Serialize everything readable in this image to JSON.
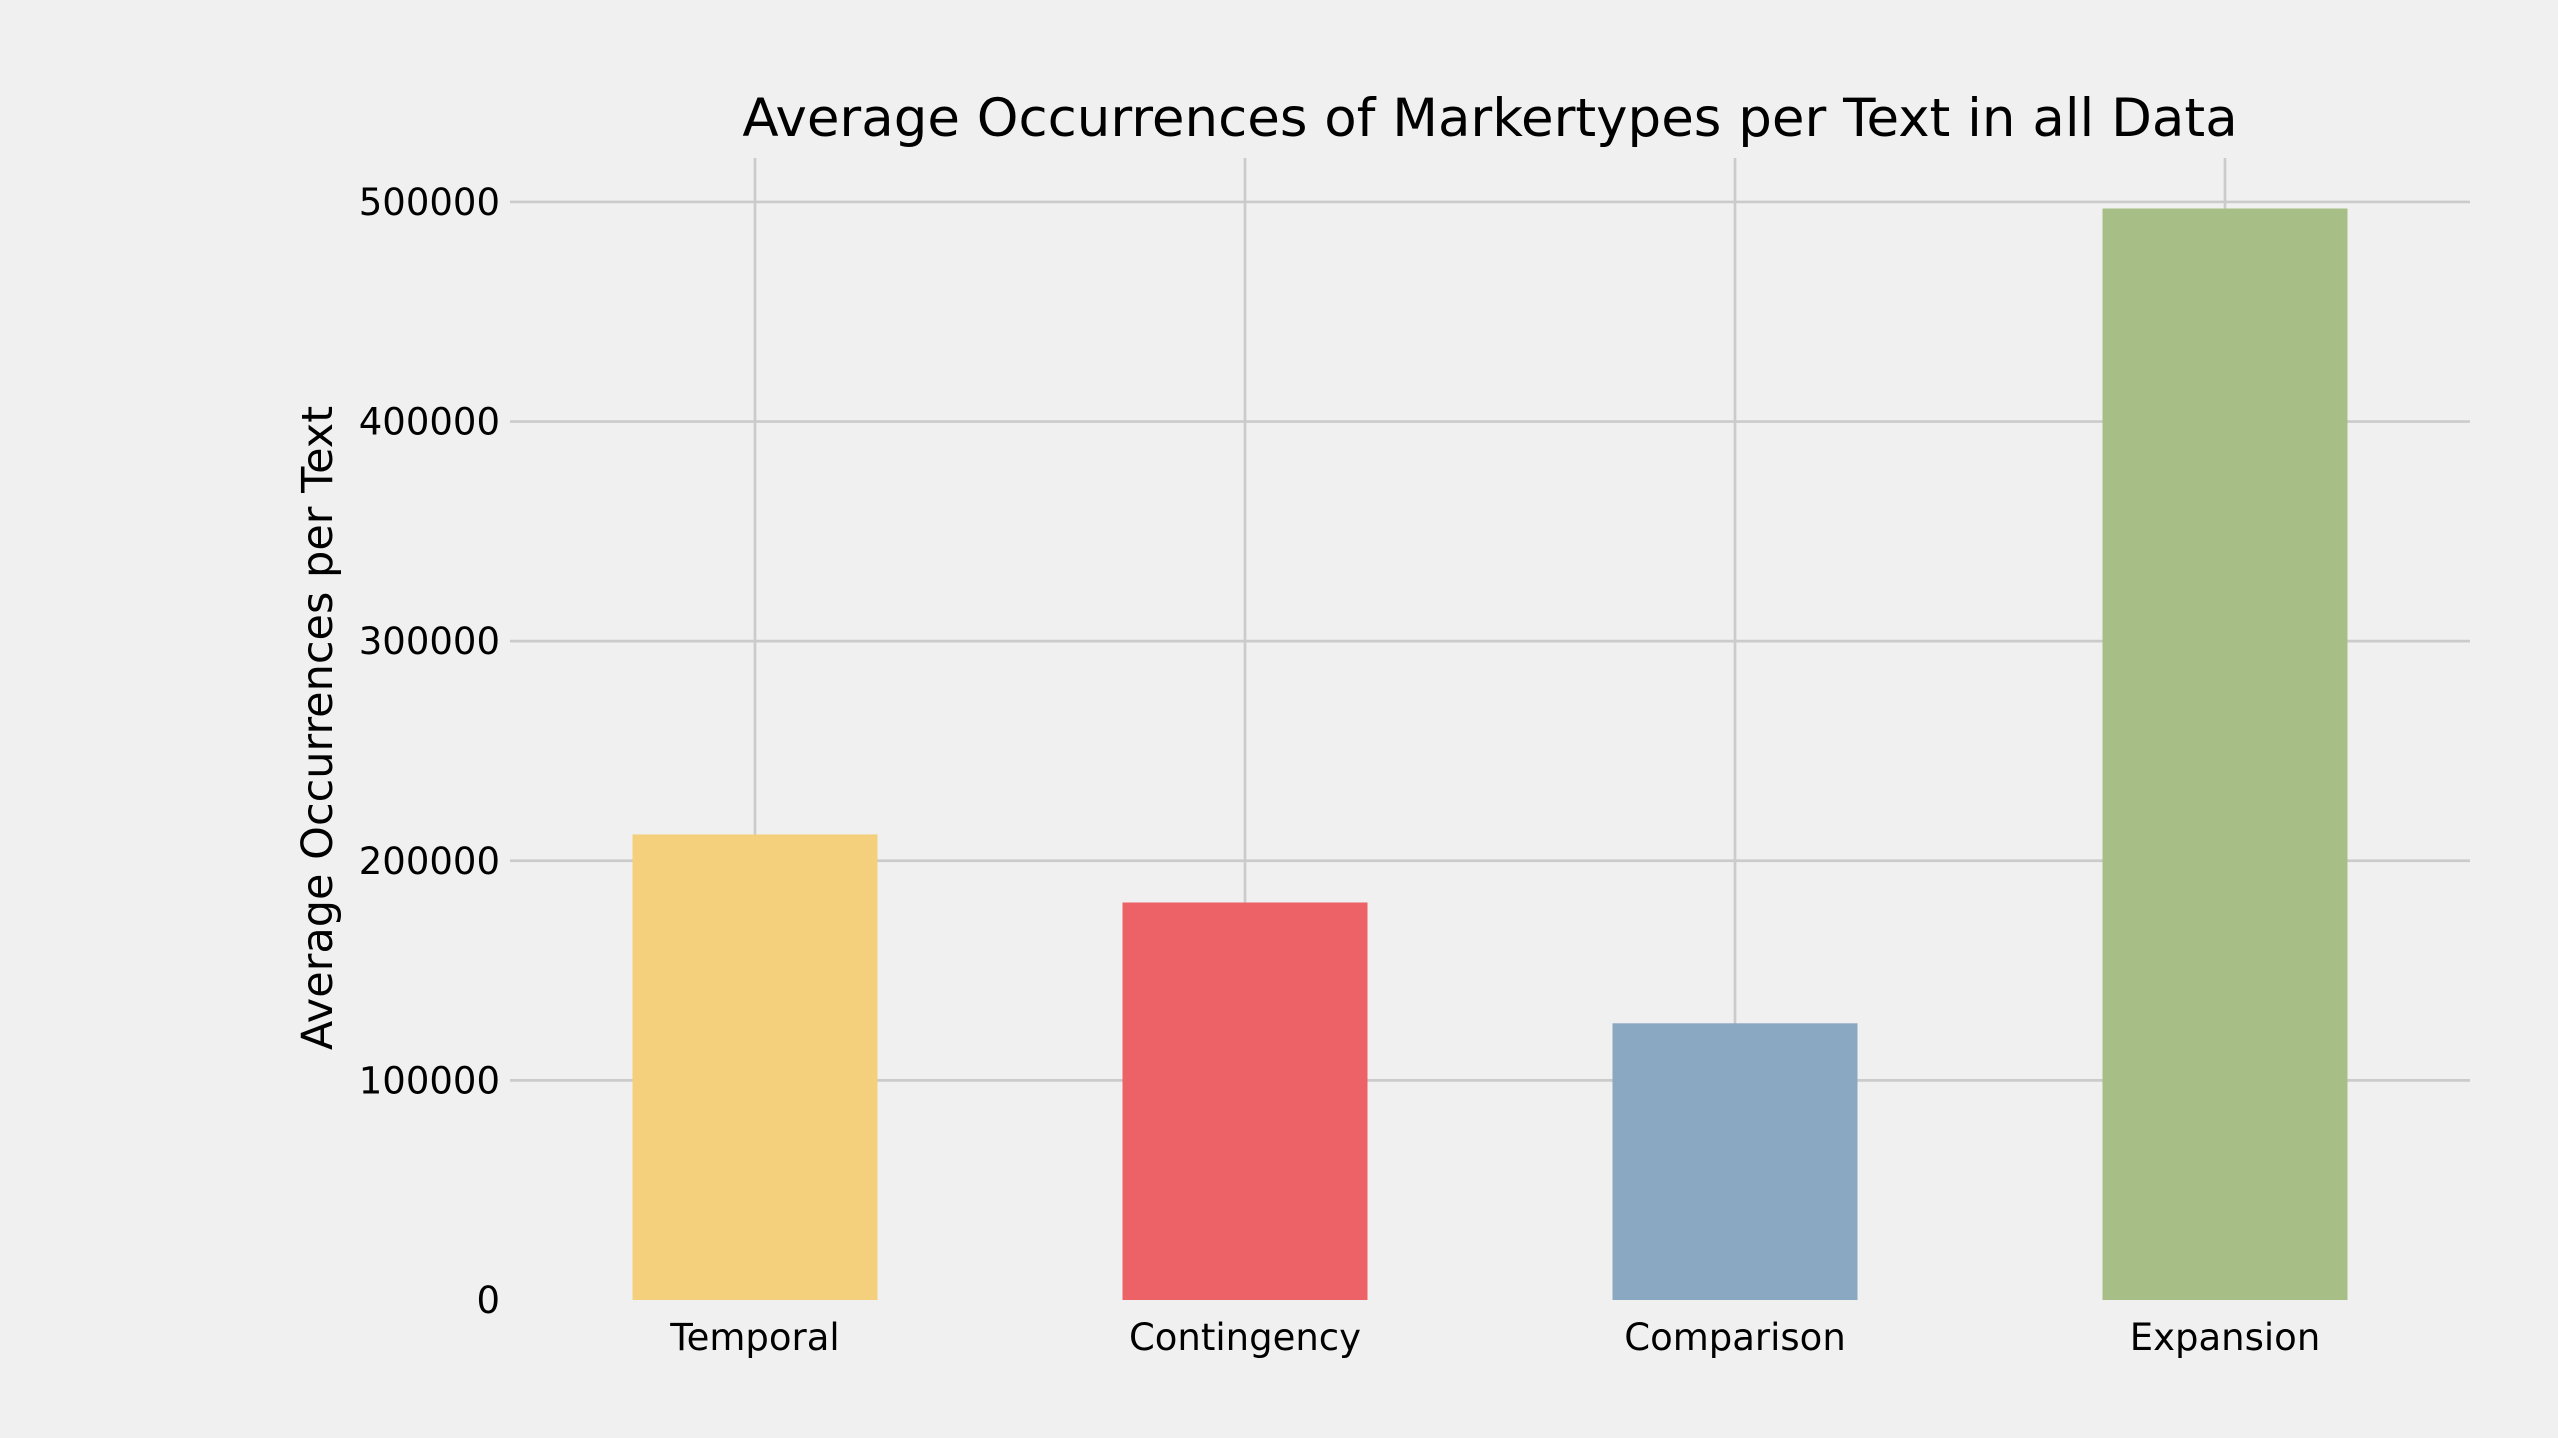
{
  "chart_data": {
    "type": "bar",
    "title": "Average Occurrences of Markertypes per Text in all Data",
    "xlabel": "",
    "ylabel": "Average Occurrences per Text",
    "categories": [
      "Temporal",
      "Contingency",
      "Comparison",
      "Expansion"
    ],
    "values": [
      212000,
      181000,
      126000,
      497000
    ],
    "colors": [
      "#f4d07d",
      "#ec6266",
      "#8ba8c2",
      "#a7be87"
    ],
    "ylim": [
      0,
      520000
    ],
    "yticks": [
      0,
      100000,
      200000,
      300000,
      400000,
      500000
    ],
    "ytick_labels": [
      "0",
      "100000",
      "200000",
      "300000",
      "400000",
      "500000"
    ],
    "grid": true,
    "legend": false
  },
  "style": {
    "background": "#f0f0f0",
    "grid_color": "#cbcbcb"
  }
}
